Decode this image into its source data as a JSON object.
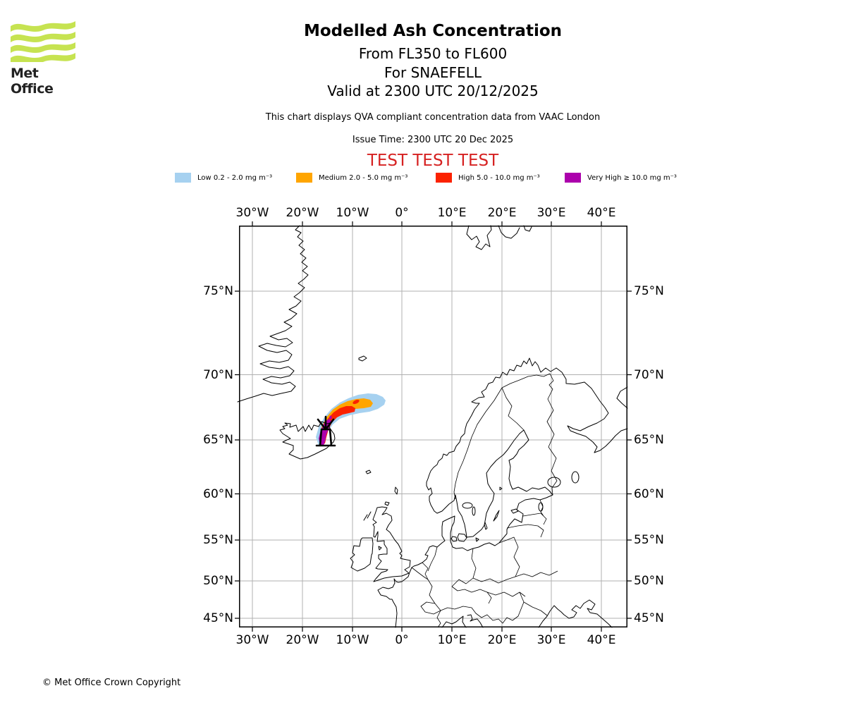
{
  "brand": {
    "name": "Met Office"
  },
  "header": {
    "title": "Modelled Ash Concentration",
    "subtitle_flight_levels": "From FL350 to FL600",
    "subtitle_volcano": "For SNAEFELL",
    "subtitle_valid": "Valid at 2300 UTC 20/12/2025",
    "description": "This chart displays QVA compliant concentration data from VAAC London",
    "issue_time": "Issue Time: 2300 UTC 20 Dec 2025",
    "watermark": "TEST TEST TEST",
    "watermark_color": "#d62222"
  },
  "legend": {
    "items": [
      {
        "label": "Low 0.2 - 2.0 mg m⁻³",
        "color": "#a6d1f0"
      },
      {
        "label": "Medium 2.0 - 5.0 mg m⁻³",
        "color": "#ffa500"
      },
      {
        "label": "High 5.0 - 10.0 mg m⁻³",
        "color": "#fb2200"
      },
      {
        "label": "Very High ≥ 10.0 mg m⁻³",
        "color": "#ac00ac"
      }
    ]
  },
  "map": {
    "x_ticks": [
      "30°W",
      "20°W",
      "10°W",
      "0°",
      "10°E",
      "20°E",
      "30°E",
      "40°E"
    ],
    "y_ticks": [
      "75°N",
      "70°N",
      "65°N",
      "60°N",
      "55°N",
      "50°N",
      "45°N"
    ]
  },
  "chart_data": {
    "type": "contour-map",
    "projection": "mercator",
    "lon_range": [
      -33,
      45.2
    ],
    "lat_range": [
      43.7,
      78.1
    ],
    "grid": "on",
    "volcano": {
      "name": "SNAEFELL",
      "marker_lon": -15.6,
      "marker_lat": 64.9
    },
    "plume": {
      "direction": "northeast from source over Iceland into the Norwegian Sea",
      "extent_lon": [
        -16.5,
        -4.5
      ],
      "extent_lat": [
        64.6,
        68.4
      ],
      "levels": [
        {
          "name": "Low",
          "range_mg_m3": "0.2 - 2.0",
          "color": "#a6d1f0"
        },
        {
          "name": "Medium",
          "range_mg_m3": "2.0 - 5.0",
          "color": "#ffa500"
        },
        {
          "name": "High",
          "range_mg_m3": "5.0 - 10.0",
          "color": "#fb2200"
        },
        {
          "name": "Very High",
          "range_mg_m3": "≥ 10.0",
          "color": "#ac00ac"
        }
      ]
    }
  },
  "footer": {
    "copyright": "© Met Office Crown Copyright"
  }
}
